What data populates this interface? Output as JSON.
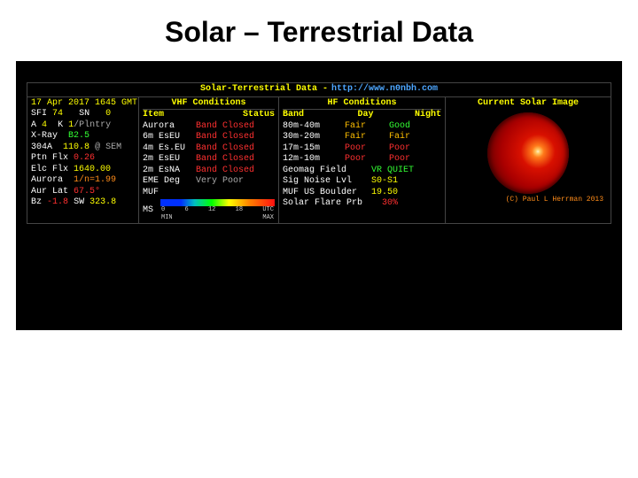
{
  "page": {
    "title": "Solar – Terrestrial Data"
  },
  "header": {
    "title": "Solar-Terrestrial Data -",
    "url": "http://www.n0nbh.com"
  },
  "timestamp": "17 Apr 2017 1645 GMT",
  "solar": {
    "sfi": {
      "label": "SFI",
      "value": "74"
    },
    "sn": {
      "label": "SN",
      "value": "0"
    },
    "a": {
      "label": "A",
      "value": "4"
    },
    "k": {
      "label": "K",
      "value": "1",
      "suffix": "/Plntry"
    },
    "xray": {
      "label": "X-Ray",
      "value": "B2.5"
    },
    "a304": {
      "label": "304A",
      "value": "110.8",
      "suffix": "@ SEM"
    },
    "ptn": {
      "label": "Ptn Flx",
      "value": "0.26"
    },
    "elc": {
      "label": "Elc Flx",
      "value": "1640.00"
    },
    "aurora": {
      "label": "Aurora",
      "value": "1/n=1.99"
    },
    "aurlat": {
      "label": "Aur Lat",
      "value": "67.5°"
    },
    "bz": {
      "label": "Bz",
      "value": "-1.8"
    },
    "sw": {
      "label": "SW",
      "value": "323.8"
    }
  },
  "vhf": {
    "title": "VHF Conditions",
    "col1": "Item",
    "col2": "Status",
    "rows": [
      {
        "item": "Aurora",
        "status": "Band Closed",
        "color": "#ff3030"
      },
      {
        "item": "6m EsEU",
        "status": "Band Closed",
        "color": "#ff3030"
      },
      {
        "item": "4m Es.EU",
        "status": "Band Closed",
        "color": "#ff3030"
      },
      {
        "item": "2m EsEU",
        "status": "Band Closed",
        "color": "#ff3030"
      },
      {
        "item": "2m EsNA",
        "status": "Band Closed",
        "color": "#ff3030"
      }
    ],
    "eme": {
      "label": "EME Deg",
      "value": "Very Poor"
    },
    "muf_label": "MUF",
    "ms_label": "MS",
    "ticks": [
      "0",
      "6",
      "12",
      "18",
      "UTC"
    ],
    "minmax": [
      "MIN",
      "MAX"
    ]
  },
  "hf": {
    "title": "HF Conditions",
    "col1": "Band",
    "col2": "Day",
    "col3": "Night",
    "rows": [
      {
        "band": "80m-40m",
        "day": "Fair",
        "dayc": "#ffbf00",
        "night": "Good",
        "nightc": "#33ff33"
      },
      {
        "band": "30m-20m",
        "day": "Fair",
        "dayc": "#ffbf00",
        "night": "Fair",
        "nightc": "#ffbf00"
      },
      {
        "band": "17m-15m",
        "day": "Poor",
        "dayc": "#ff3030",
        "night": "Poor",
        "nightc": "#ff3030"
      },
      {
        "band": "12m-10m",
        "day": "Poor",
        "dayc": "#ff3030",
        "night": "Poor",
        "nightc": "#ff3030"
      }
    ],
    "geomag": {
      "label": "Geomag Field",
      "value": "VR QUIET",
      "color": "#33ff33"
    },
    "noise": {
      "label": "Sig Noise Lvl",
      "value": "S0-S1"
    },
    "mufus": {
      "label": "MUF US Boulder",
      "value": "19.50"
    },
    "flare": {
      "label": "Solar Flare Prb",
      "value": "30%"
    }
  },
  "image": {
    "title": "Current Solar Image"
  },
  "credit": "(C) Paul L Herrman 2013"
}
